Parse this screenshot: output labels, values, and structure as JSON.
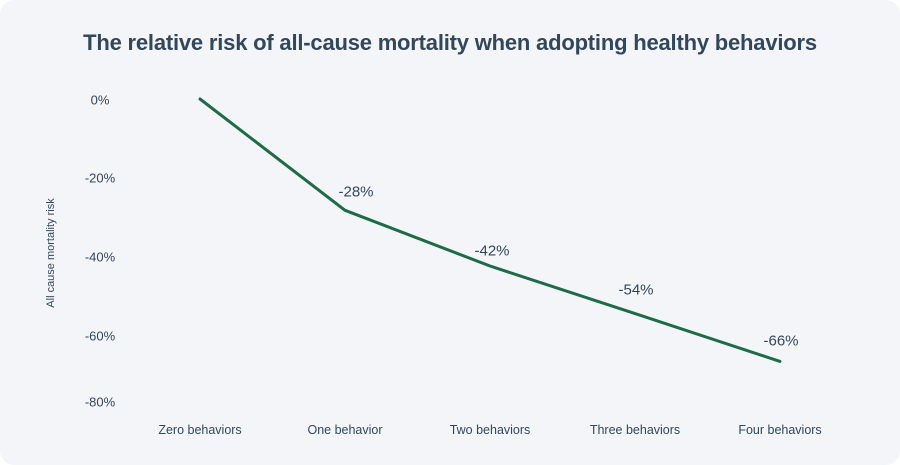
{
  "chart_data": {
    "type": "line",
    "title": "The relative risk of all-cause mortality when adopting healthy behaviors",
    "ylabel": "All cause mortality risk",
    "xlabel": "",
    "categories": [
      "Zero behaviors",
      "One behavior",
      "Two behaviors",
      "Three behaviors",
      "Four behaviors"
    ],
    "values": [
      0,
      -28,
      -42,
      -54,
      -66
    ],
    "point_labels": [
      "",
      "-28%",
      "-42%",
      "-54%",
      "-66%"
    ],
    "y_ticks": [
      "0%",
      "-20%",
      "-40%",
      "-60%",
      "-80%"
    ],
    "ylim": [
      0,
      -80
    ],
    "grid": false,
    "legend": "none",
    "line_color": "#1e6b48",
    "text_color": "#33475b",
    "background_color": "#f4f5f8"
  }
}
